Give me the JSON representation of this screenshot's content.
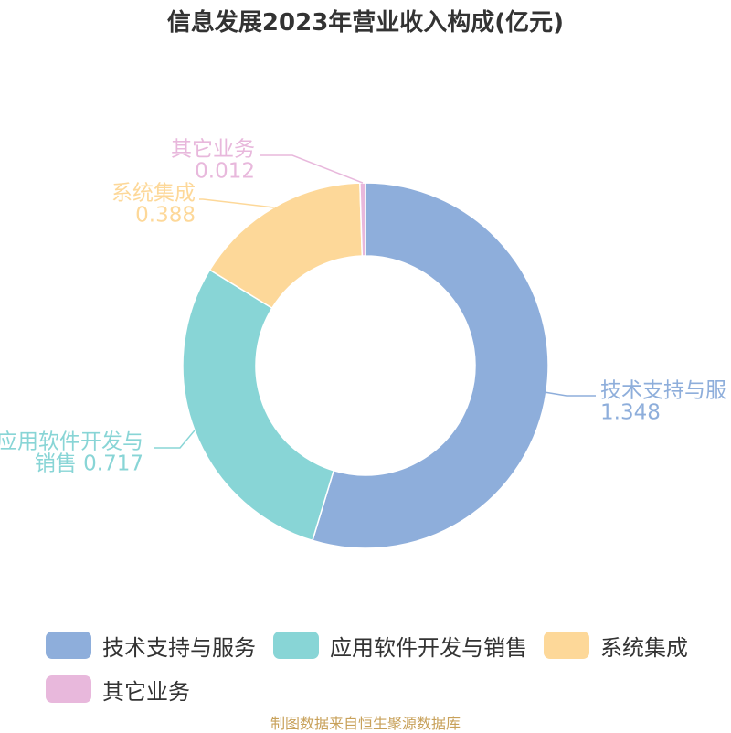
{
  "chart_data": {
    "type": "pie",
    "donut": true,
    "title": "信息发展2023年营业收入构成(亿元)",
    "categories": [
      "技术支持与服务",
      "应用软件开发与销售",
      "系统集成",
      "其它业务"
    ],
    "values": [
      1.348,
      0.717,
      0.388,
      0.012
    ],
    "value_labels": [
      "1.348",
      "0.717",
      "0.388",
      "0.012"
    ],
    "colors": [
      "#8eaedb",
      "#88d5d6",
      "#fdd899",
      "#e8b8dc"
    ],
    "legend_position": "bottom"
  },
  "slice_labels": [
    {
      "lines": [
        "技术支持与服",
        "1.348"
      ]
    },
    {
      "lines": [
        "应用软件开发与",
        "销售 0.717"
      ]
    },
    {
      "lines": [
        "系统集成",
        "0.388"
      ]
    },
    {
      "lines": [
        "其它业务",
        "0.012"
      ]
    }
  ],
  "footer": {
    "source": "制图数据来自恒生聚源数据库"
  }
}
